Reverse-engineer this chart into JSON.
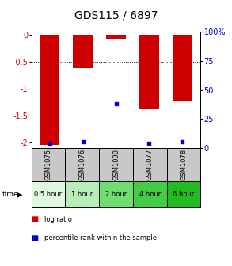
{
  "title": "GDS115 / 6897",
  "samples": [
    "GSM1075",
    "GSM1076",
    "GSM1090",
    "GSM1077",
    "GSM1078"
  ],
  "time_labels": [
    "0.5 hour",
    "1 hour",
    "2 hour",
    "4 hour",
    "6 hour"
  ],
  "log_ratios": [
    -2.05,
    -0.62,
    -0.08,
    -1.38,
    -1.22
  ],
  "percentile_ranks": [
    3,
    5,
    38,
    4,
    5
  ],
  "ylim_left": [
    -2.1,
    0.05
  ],
  "ylim_right": [
    0,
    100
  ],
  "yticks_left": [
    0,
    -0.5,
    -1.0,
    -1.5,
    -2.0
  ],
  "yticks_right": [
    0,
    25,
    50,
    75,
    100
  ],
  "left_color": "#cc0000",
  "right_color": "#0000cc",
  "bar_color": "#cc0000",
  "blue_color": "#0000cc",
  "bg_color": "#ffffff",
  "sample_bg": "#c8c8c8",
  "time_bg_colors": [
    "#e0f8e0",
    "#b8ecb8",
    "#70dd70",
    "#44cc44",
    "#22bb22"
  ],
  "title_fontsize": 10,
  "tick_fontsize": 7,
  "sample_fontsize": 6,
  "time_fontsize": 6
}
